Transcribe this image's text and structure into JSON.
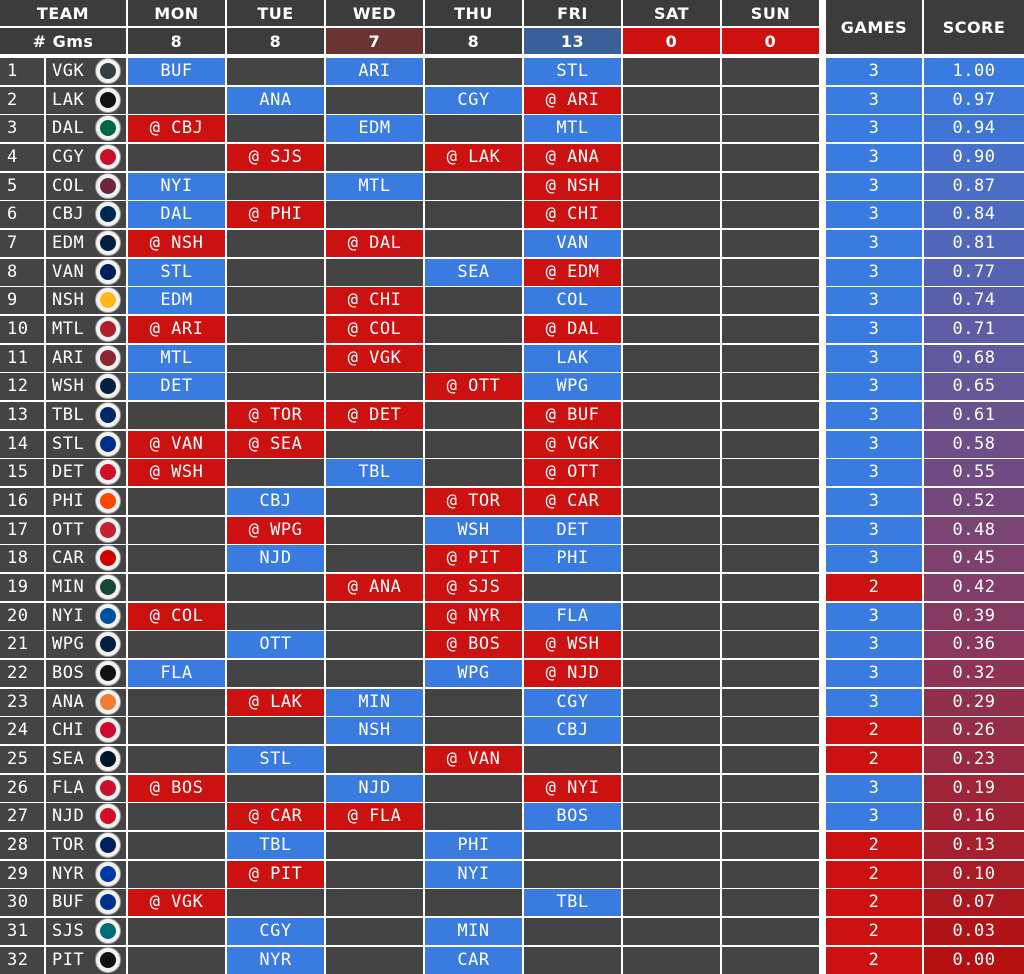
{
  "header": {
    "team_label": "TEAM",
    "gms_label": "# Gms",
    "games_label": "GAMES",
    "score_label": "SCORE",
    "days": [
      {
        "name": "MON",
        "count": "8",
        "count_color": "#3c3c3c"
      },
      {
        "name": "TUE",
        "count": "8",
        "count_color": "#3c3c3c"
      },
      {
        "name": "WED",
        "count": "7",
        "count_color": "#6a3434"
      },
      {
        "name": "THU",
        "count": "8",
        "count_color": "#3c3c3c"
      },
      {
        "name": "FRI",
        "count": "13",
        "count_color": "#3b5f98"
      },
      {
        "name": "SAT",
        "count": "0",
        "count_color": "#cc1111"
      },
      {
        "name": "SUN",
        "count": "0",
        "count_color": "#cc1111"
      }
    ]
  },
  "colors": {
    "home": "#3a7be0",
    "away": "#cc1111",
    "empty": "#444444",
    "header": "#3c3c3c",
    "games_three": "#3a7be0",
    "games_two": "#cc1111",
    "score_high": "#3a7be0",
    "score_low": "#b51111",
    "grid": "#ffffff"
  },
  "teams": [
    {
      "rank": "1",
      "abbr": "VGK",
      "logo": "vgk-logo",
      "logo_color": "#333f42",
      "games": "3",
      "score": "1.00",
      "schedule": [
        "BUF",
        "",
        "ARI",
        "",
        "STL",
        "",
        ""
      ]
    },
    {
      "rank": "2",
      "abbr": "LAK",
      "logo": "lak-logo",
      "logo_color": "#111111",
      "games": "3",
      "score": "0.97",
      "schedule": [
        "",
        "ANA",
        "",
        "CGY",
        "@ ARI",
        "",
        ""
      ]
    },
    {
      "rank": "3",
      "abbr": "DAL",
      "logo": "dal-logo",
      "logo_color": "#006847",
      "games": "3",
      "score": "0.94",
      "schedule": [
        "@ CBJ",
        "",
        "EDM",
        "",
        "MTL",
        "",
        ""
      ]
    },
    {
      "rank": "4",
      "abbr": "CGY",
      "logo": "cgy-logo",
      "logo_color": "#c8102e",
      "games": "3",
      "score": "0.90",
      "schedule": [
        "",
        "@ SJS",
        "",
        "@ LAK",
        "@ ANA",
        "",
        ""
      ]
    },
    {
      "rank": "5",
      "abbr": "COL",
      "logo": "col-logo",
      "logo_color": "#6f263d",
      "games": "3",
      "score": "0.87",
      "schedule": [
        "NYI",
        "",
        "MTL",
        "",
        "@ NSH",
        "",
        ""
      ]
    },
    {
      "rank": "6",
      "abbr": "CBJ",
      "logo": "cbj-logo",
      "logo_color": "#002654",
      "games": "3",
      "score": "0.84",
      "schedule": [
        "DAL",
        "@ PHI",
        "",
        "",
        "@ CHI",
        "",
        ""
      ]
    },
    {
      "rank": "7",
      "abbr": "EDM",
      "logo": "edm-logo",
      "logo_color": "#041e42",
      "games": "3",
      "score": "0.81",
      "schedule": [
        "@ NSH",
        "",
        "@ DAL",
        "",
        "VAN",
        "",
        ""
      ]
    },
    {
      "rank": "8",
      "abbr": "VAN",
      "logo": "van-logo",
      "logo_color": "#00205b",
      "games": "3",
      "score": "0.77",
      "schedule": [
        "STL",
        "",
        "",
        "SEA",
        "@ EDM",
        "",
        ""
      ]
    },
    {
      "rank": "9",
      "abbr": "NSH",
      "logo": "nsh-logo",
      "logo_color": "#ffb81c",
      "games": "3",
      "score": "0.74",
      "schedule": [
        "EDM",
        "",
        "@ CHI",
        "",
        "COL",
        "",
        ""
      ]
    },
    {
      "rank": "10",
      "abbr": "MTL",
      "logo": "mtl-logo",
      "logo_color": "#af1e2d",
      "games": "3",
      "score": "0.71",
      "schedule": [
        "@ ARI",
        "",
        "@ COL",
        "",
        "@ DAL",
        "",
        ""
      ]
    },
    {
      "rank": "11",
      "abbr": "ARI",
      "logo": "ari-logo",
      "logo_color": "#8c2633",
      "games": "3",
      "score": "0.68",
      "schedule": [
        "MTL",
        "",
        "@ VGK",
        "",
        "LAK",
        "",
        ""
      ]
    },
    {
      "rank": "12",
      "abbr": "WSH",
      "logo": "wsh-logo",
      "logo_color": "#041e42",
      "games": "3",
      "score": "0.65",
      "schedule": [
        "DET",
        "",
        "",
        "@ OTT",
        "WPG",
        "",
        ""
      ]
    },
    {
      "rank": "13",
      "abbr": "TBL",
      "logo": "tbl-logo",
      "logo_color": "#002868",
      "games": "3",
      "score": "0.61",
      "schedule": [
        "",
        "@ TOR",
        "@ DET",
        "",
        "@ BUF",
        "",
        ""
      ]
    },
    {
      "rank": "14",
      "abbr": "STL",
      "logo": "stl-logo",
      "logo_color": "#002f87",
      "games": "3",
      "score": "0.58",
      "schedule": [
        "@ VAN",
        "@ SEA",
        "",
        "",
        "@ VGK",
        "",
        ""
      ]
    },
    {
      "rank": "15",
      "abbr": "DET",
      "logo": "det-logo",
      "logo_color": "#ce1126",
      "games": "3",
      "score": "0.55",
      "schedule": [
        "@ WSH",
        "",
        "TBL",
        "",
        "@ OTT",
        "",
        ""
      ]
    },
    {
      "rank": "16",
      "abbr": "PHI",
      "logo": "phi-logo",
      "logo_color": "#f74902",
      "games": "3",
      "score": "0.52",
      "schedule": [
        "",
        "CBJ",
        "",
        "@ TOR",
        "@ CAR",
        "",
        ""
      ]
    },
    {
      "rank": "17",
      "abbr": "OTT",
      "logo": "ott-logo",
      "logo_color": "#c52032",
      "games": "3",
      "score": "0.48",
      "schedule": [
        "",
        "@ WPG",
        "",
        "WSH",
        "DET",
        "",
        ""
      ]
    },
    {
      "rank": "18",
      "abbr": "CAR",
      "logo": "car-logo",
      "logo_color": "#cc0000",
      "games": "3",
      "score": "0.45",
      "schedule": [
        "",
        "NJD",
        "",
        "@ PIT",
        "PHI",
        "",
        ""
      ]
    },
    {
      "rank": "19",
      "abbr": "MIN",
      "logo": "min-logo",
      "logo_color": "#154734",
      "games": "2",
      "score": "0.42",
      "schedule": [
        "",
        "",
        "@ ANA",
        "@ SJS",
        "",
        "",
        ""
      ]
    },
    {
      "rank": "20",
      "abbr": "NYI",
      "logo": "nyi-logo",
      "logo_color": "#00539b",
      "games": "3",
      "score": "0.39",
      "schedule": [
        "@ COL",
        "",
        "",
        "@ NYR",
        "FLA",
        "",
        ""
      ]
    },
    {
      "rank": "21",
      "abbr": "WPG",
      "logo": "wpg-logo",
      "logo_color": "#041e42",
      "games": "3",
      "score": "0.36",
      "schedule": [
        "",
        "OTT",
        "",
        "@ BOS",
        "@ WSH",
        "",
        ""
      ]
    },
    {
      "rank": "22",
      "abbr": "BOS",
      "logo": "bos-logo",
      "logo_color": "#111111",
      "games": "3",
      "score": "0.32",
      "schedule": [
        "FLA",
        "",
        "",
        "WPG",
        "@ NJD",
        "",
        ""
      ]
    },
    {
      "rank": "23",
      "abbr": "ANA",
      "logo": "ana-logo",
      "logo_color": "#f47a38",
      "games": "3",
      "score": "0.29",
      "schedule": [
        "",
        "@ LAK",
        "MIN",
        "",
        "CGY",
        "",
        ""
      ]
    },
    {
      "rank": "24",
      "abbr": "CHI",
      "logo": "chi-logo",
      "logo_color": "#cf0a2c",
      "games": "2",
      "score": "0.26",
      "schedule": [
        "",
        "",
        "NSH",
        "",
        "CBJ",
        "",
        ""
      ]
    },
    {
      "rank": "25",
      "abbr": "SEA",
      "logo": "sea-logo",
      "logo_color": "#001628",
      "games": "2",
      "score": "0.23",
      "schedule": [
        "",
        "STL",
        "",
        "@ VAN",
        "",
        "",
        ""
      ]
    },
    {
      "rank": "26",
      "abbr": "FLA",
      "logo": "fla-logo",
      "logo_color": "#c8102e",
      "games": "3",
      "score": "0.19",
      "schedule": [
        "@ BOS",
        "",
        "NJD",
        "",
        "@ NYI",
        "",
        ""
      ]
    },
    {
      "rank": "27",
      "abbr": "NJD",
      "logo": "njd-logo",
      "logo_color": "#ce1126",
      "games": "3",
      "score": "0.16",
      "schedule": [
        "",
        "@ CAR",
        "@ FLA",
        "",
        "BOS",
        "",
        ""
      ]
    },
    {
      "rank": "28",
      "abbr": "TOR",
      "logo": "tor-logo",
      "logo_color": "#00205b",
      "games": "2",
      "score": "0.13",
      "schedule": [
        "",
        "TBL",
        "",
        "PHI",
        "",
        "",
        ""
      ]
    },
    {
      "rank": "29",
      "abbr": "NYR",
      "logo": "nyr-logo",
      "logo_color": "#0038a8",
      "games": "2",
      "score": "0.10",
      "schedule": [
        "",
        "@ PIT",
        "",
        "NYI",
        "",
        "",
        ""
      ]
    },
    {
      "rank": "30",
      "abbr": "BUF",
      "logo": "buf-logo",
      "logo_color": "#003087",
      "games": "2",
      "score": "0.07",
      "schedule": [
        "@ VGK",
        "",
        "",
        "",
        "TBL",
        "",
        ""
      ]
    },
    {
      "rank": "31",
      "abbr": "SJS",
      "logo": "sjs-logo",
      "logo_color": "#006d75",
      "games": "2",
      "score": "0.03",
      "schedule": [
        "",
        "CGY",
        "",
        "MIN",
        "",
        "",
        ""
      ]
    },
    {
      "rank": "32",
      "abbr": "PIT",
      "logo": "pit-logo",
      "logo_color": "#111111",
      "games": "2",
      "score": "0.00",
      "schedule": [
        "",
        "NYR",
        "",
        "CAR",
        "",
        "",
        ""
      ]
    }
  ]
}
